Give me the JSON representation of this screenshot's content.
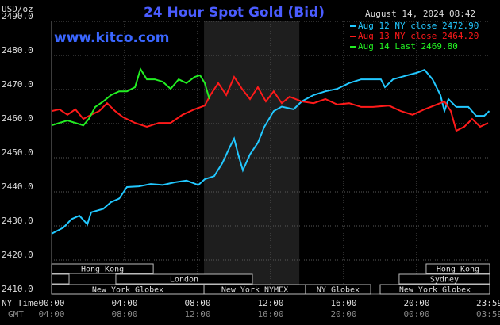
{
  "chart_data": {
    "type": "line",
    "title": "24 Hour Spot Gold (Bid)",
    "site": "www.kitco.com",
    "timestamp": "August 14, 2024 08:42",
    "ylabel": "USD/oz",
    "xaxis_label": "NY Time",
    "x2axis_label": "GMT",
    "xlim": [
      0,
      24
    ],
    "ylim": [
      2410,
      2490
    ],
    "grid": true,
    "yticks": [
      {
        "value": 2410,
        "label": "2410.0"
      },
      {
        "value": 2420,
        "label": "2420.0"
      },
      {
        "value": 2430,
        "label": "2430.0"
      },
      {
        "value": 2440,
        "label": "2440.0"
      },
      {
        "value": 2450,
        "label": "2450.0"
      },
      {
        "value": 2460,
        "label": "2460.0"
      },
      {
        "value": 2470,
        "label": "2470.0"
      },
      {
        "value": 2480,
        "label": "2480.0"
      },
      {
        "value": 2490,
        "label": "2490.0"
      }
    ],
    "xticks": [
      {
        "value": 0,
        "label": "00:00"
      },
      {
        "value": 4,
        "label": "04:00"
      },
      {
        "value": 8,
        "label": "08:00"
      },
      {
        "value": 12,
        "label": "12:00"
      },
      {
        "value": 16,
        "label": "16:00"
      },
      {
        "value": 20,
        "label": "20:00"
      },
      {
        "value": 23.983,
        "label": "23:59"
      }
    ],
    "x2ticks": [
      {
        "value": 0,
        "label": "04:00"
      },
      {
        "value": 4,
        "label": "08:00"
      },
      {
        "value": 8,
        "label": "12:00"
      },
      {
        "value": 12,
        "label": "16:00"
      },
      {
        "value": 16,
        "label": "20:00"
      },
      {
        "value": 20,
        "label": "00:00"
      },
      {
        "value": 23.983,
        "label": "03:59"
      }
    ],
    "highlight": {
      "start": 8.35,
      "end": 13.57
    },
    "sessions": [
      {
        "name": "Hong Kong",
        "start": 0,
        "end": 5.57
      },
      {
        "name": "Hong Kong",
        "start": 20.52,
        "end": 24
      },
      {
        "name": "London",
        "start": 3.52,
        "end": 11
      },
      {
        "name": "Sydney",
        "start": 19.04,
        "end": 24
      },
      {
        "name": "New York Globex",
        "start": 0,
        "end": 8.35
      },
      {
        "name": "New York NYMEX",
        "start": 8.35,
        "end": 13.91
      },
      {
        "name": "NY Globex",
        "start": 13.91,
        "end": 17.48
      },
      {
        "name": "New York Globex",
        "start": 18,
        "end": 24
      }
    ],
    "series": [
      {
        "name": "Aug 12 NY close 2472.90",
        "color": "#22c8ff",
        "x": [
          0,
          0.65,
          1.09,
          1.52,
          1.96,
          2.17,
          2.83,
          3.26,
          3.7,
          4.13,
          4.78,
          5.43,
          6.09,
          6.74,
          7.39,
          8.04,
          8.39,
          8.91,
          9.35,
          9.78,
          10,
          10.22,
          10.48,
          10.87,
          11.3,
          11.65,
          12.17,
          12.61,
          13.26,
          13.7,
          14.35,
          15,
          15.65,
          16.3,
          16.96,
          18.04,
          18.26,
          18.7,
          19.35,
          20,
          20.43,
          20.87,
          21.3,
          21.52,
          21.74,
          22.17,
          22.83,
          23.26,
          23.7,
          23.98
        ],
        "values": [
          2427.7,
          2429.5,
          2432,
          2433,
          2430.5,
          2434,
          2435,
          2437,
          2438,
          2441.4,
          2441.6,
          2442.3,
          2442,
          2442.8,
          2443.3,
          2442,
          2443.7,
          2444.6,
          2448.4,
          2453.3,
          2455.6,
          2451,
          2446.3,
          2451,
          2454.4,
          2459,
          2463.7,
          2465,
          2464.2,
          2466.5,
          2468.4,
          2469.5,
          2470.2,
          2471.9,
          2473,
          2473,
          2470.7,
          2473,
          2474,
          2474.9,
          2475.8,
          2473,
          2468.4,
          2463.7,
          2467.2,
          2464.9,
          2464.9,
          2462.3,
          2462.3,
          2463.7
        ]
      },
      {
        "name": "Aug 13 NY close 2464.20",
        "color": "#ff1a1a",
        "x": [
          0,
          0.43,
          0.87,
          1.3,
          1.74,
          2.17,
          2.61,
          3.04,
          3.48,
          3.91,
          4.57,
          5.22,
          5.87,
          6.52,
          7.17,
          7.83,
          8.39,
          8.7,
          9.13,
          9.57,
          10,
          10.43,
          10.87,
          11.3,
          11.74,
          12.17,
          12.61,
          13.04,
          13.7,
          14.35,
          15,
          15.65,
          16.3,
          16.96,
          17.61,
          18.48,
          19.13,
          19.78,
          20.43,
          21.09,
          21.52,
          21.87,
          22.17,
          22.61,
          23.04,
          23.48,
          23.91
        ],
        "values": [
          2463.7,
          2464.2,
          2462.6,
          2464.2,
          2461.4,
          2462.6,
          2463.7,
          2466,
          2463.7,
          2461.9,
          2460.2,
          2459.1,
          2460.2,
          2460.2,
          2462.6,
          2464.2,
          2465.3,
          2468.4,
          2471.9,
          2468.4,
          2473.7,
          2470.2,
          2467.2,
          2470.7,
          2466.5,
          2469.5,
          2466,
          2467.9,
          2466.5,
          2466,
          2467.2,
          2465.6,
          2466,
          2464.9,
          2464.9,
          2465.3,
          2463.7,
          2462.6,
          2464.2,
          2465.6,
          2466.5,
          2463.7,
          2457.9,
          2459.1,
          2461.4,
          2459.1,
          2460.2
        ]
      },
      {
        "name": "Aug 14 Last 2469.80",
        "color": "#22ee22",
        "x": [
          0,
          0.43,
          0.87,
          1.3,
          1.74,
          2.04,
          2.39,
          2.83,
          3.26,
          3.7,
          4.13,
          4.57,
          4.87,
          5.22,
          5.65,
          6.09,
          6.52,
          6.96,
          7.39,
          7.83,
          8.13,
          8.39,
          8.65
        ],
        "values": [
          2459.5,
          2460.2,
          2460.9,
          2460.2,
          2459.5,
          2461.4,
          2464.9,
          2466.5,
          2468.4,
          2469.5,
          2469.5,
          2470.7,
          2476,
          2473,
          2473,
          2472.3,
          2470.2,
          2473,
          2471.9,
          2473.7,
          2474.2,
          2471.9,
          2467.2
        ]
      }
    ]
  }
}
